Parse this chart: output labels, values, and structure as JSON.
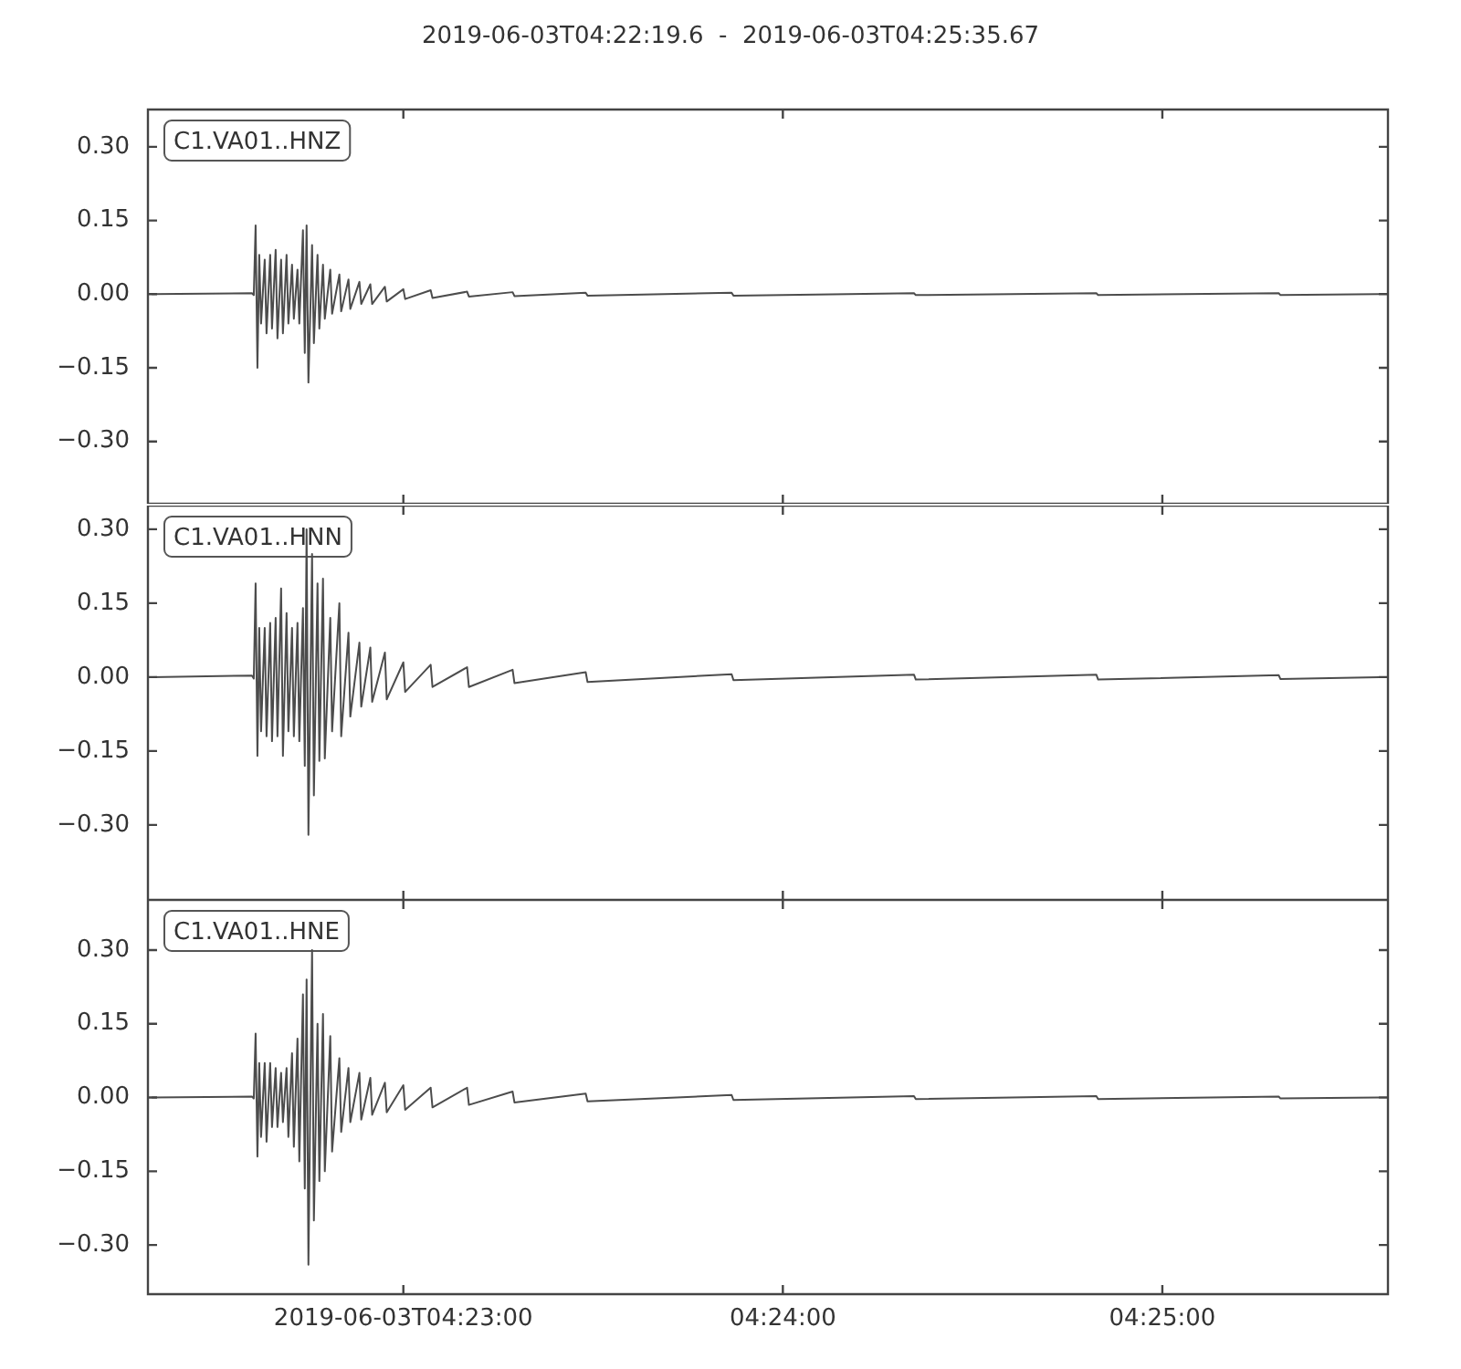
{
  "chart_data": [
    {
      "type": "line",
      "title": "2019-06-03T04:22:19.6  -  2019-06-03T04:25:35.67",
      "annotations": [
        "C1.VA01..HNZ"
      ],
      "x": [
        4.37228,
        4.37668,
        4.37676,
        4.37684,
        4.37692,
        4.377,
        4.37708,
        4.37724,
        4.37732,
        4.37748,
        4.37756,
        4.37772,
        4.3778,
        4.37796,
        4.37804,
        4.3782,
        4.37828,
        4.37844,
        4.37852,
        4.37868,
        4.37876,
        4.37892,
        4.379,
        4.37908,
        4.37916,
        4.37932,
        4.3794,
        4.37956,
        4.37964,
        4.3798,
        4.37988,
        4.38012,
        4.3802,
        4.38052,
        4.3806,
        4.38092,
        4.381,
        4.3814,
        4.38148,
        4.38188,
        4.38196,
        4.38252,
        4.3826,
        4.38333,
        4.38341,
        4.38453,
        4.38461,
        4.38613,
        4.38621,
        4.38813,
        4.38821,
        4.39134,
        4.39142,
        4.39775,
        4.39783,
        4.40576,
        4.40584,
        4.41377,
        4.41385,
        4.42178,
        4.42186,
        4.42618
      ],
      "series": [
        {
          "color": "#4c4c4c",
          "values": [
            0,
            0.002,
            -0.002,
            0.14,
            -0.15,
            0.08,
            -0.06,
            0.07,
            -0.08,
            0.08,
            -0.07,
            0.09,
            -0.09,
            0.07,
            -0.08,
            0.08,
            -0.06,
            0.06,
            -0.05,
            0.05,
            -0.06,
            0.13,
            -0.12,
            0.14,
            -0.18,
            0.1,
            -0.1,
            0.08,
            -0.07,
            0.06,
            -0.05,
            0.05,
            -0.04,
            0.04,
            -0.035,
            0.03,
            -0.03,
            0.025,
            -0.02,
            0.02,
            -0.02,
            0.015,
            -0.015,
            0.01,
            -0.01,
            0.008,
            -0.008,
            0.005,
            -0.005,
            0.004,
            -0.004,
            0.003,
            -0.003,
            0.003,
            -0.003,
            0.002,
            -0.002,
            0.002,
            -0.002,
            0.002,
            -0.002,
            0
          ]
        }
      ],
      "xlim": [
        4.37211,
        4.42658
      ],
      "ylim": [
        -0.427,
        0.376
      ],
      "xticks": [
        {
          "value": 4.38333,
          "label": null
        },
        {
          "value": 4.4,
          "label": null
        },
        {
          "value": 4.41667,
          "label": null
        }
      ],
      "yticks": [
        {
          "value": -0.3,
          "label": "−0.30"
        },
        {
          "value": -0.15,
          "label": "−0.15"
        },
        {
          "value": 0,
          "label": "0.00"
        },
        {
          "value": 0.15,
          "label": "0.15"
        },
        {
          "value": 0.3,
          "label": "0.30"
        }
      ],
      "tick_labels": "y"
    },
    {
      "type": "line",
      "annotations": [
        "C1.VA01..HNN"
      ],
      "x": [
        4.37228,
        4.37668,
        4.37676,
        4.37684,
        4.37692,
        4.377,
        4.37708,
        4.37724,
        4.37732,
        4.37748,
        4.37756,
        4.37772,
        4.3778,
        4.37796,
        4.37804,
        4.3782,
        4.37828,
        4.37844,
        4.37852,
        4.37868,
        4.37876,
        4.37892,
        4.379,
        4.37908,
        4.37916,
        4.37932,
        4.3794,
        4.37956,
        4.37964,
        4.3798,
        4.37988,
        4.38012,
        4.3802,
        4.38052,
        4.3806,
        4.38092,
        4.381,
        4.3814,
        4.38148,
        4.38188,
        4.38196,
        4.38252,
        4.3826,
        4.38333,
        4.38341,
        4.38453,
        4.38461,
        4.38613,
        4.38621,
        4.38813,
        4.38821,
        4.39134,
        4.39142,
        4.39775,
        4.39783,
        4.40576,
        4.40584,
        4.41377,
        4.41385,
        4.42178,
        4.42186,
        4.42618
      ],
      "series": [
        {
          "color": "#4c4c4c",
          "values": [
            0,
            0.003,
            -0.003,
            0.19,
            -0.16,
            0.1,
            -0.11,
            0.1,
            -0.12,
            0.11,
            -0.13,
            0.12,
            -0.12,
            0.18,
            -0.16,
            0.13,
            -0.11,
            0.1,
            -0.12,
            0.11,
            -0.13,
            0.14,
            -0.18,
            0.3,
            -0.32,
            0.25,
            -0.24,
            0.19,
            -0.17,
            0.2,
            -0.165,
            0.12,
            -0.11,
            0.15,
            -0.12,
            0.09,
            -0.08,
            0.07,
            -0.06,
            0.06,
            -0.05,
            0.05,
            -0.045,
            0.03,
            -0.03,
            0.025,
            -0.02,
            0.02,
            -0.02,
            0.015,
            -0.012,
            0.01,
            -0.01,
            0.006,
            -0.006,
            0.005,
            -0.005,
            0.005,
            -0.005,
            0.004,
            -0.004,
            0
          ]
        }
      ],
      "xlim": [
        4.37211,
        4.42658
      ],
      "ylim": [
        -0.452,
        0.348
      ],
      "xticks": [
        {
          "value": 4.38333,
          "label": null
        },
        {
          "value": 4.4,
          "label": null
        },
        {
          "value": 4.41667,
          "label": null
        }
      ],
      "yticks": [
        {
          "value": -0.3,
          "label": "−0.30"
        },
        {
          "value": -0.15,
          "label": "−0.15"
        },
        {
          "value": 0,
          "label": "0.00"
        },
        {
          "value": 0.15,
          "label": "0.15"
        },
        {
          "value": 0.3,
          "label": "0.30"
        }
      ],
      "tick_labels": "y"
    },
    {
      "type": "line",
      "annotations": [
        "C1.VA01..HNE"
      ],
      "x": [
        4.37228,
        4.37668,
        4.37676,
        4.37684,
        4.37692,
        4.377,
        4.37708,
        4.37724,
        4.37732,
        4.37748,
        4.37756,
        4.37772,
        4.3778,
        4.37796,
        4.37804,
        4.3782,
        4.37828,
        4.37844,
        4.37852,
        4.37868,
        4.37876,
        4.37892,
        4.379,
        4.37908,
        4.37916,
        4.37932,
        4.3794,
        4.37956,
        4.37964,
        4.3798,
        4.37988,
        4.38012,
        4.3802,
        4.38052,
        4.3806,
        4.38092,
        4.381,
        4.3814,
        4.38148,
        4.38188,
        4.38196,
        4.38252,
        4.3826,
        4.38333,
        4.38341,
        4.38453,
        4.38461,
        4.38613,
        4.38621,
        4.38813,
        4.38821,
        4.39134,
        4.39142,
        4.39775,
        4.39783,
        4.40576,
        4.40584,
        4.41377,
        4.41385,
        4.42178,
        4.42186,
        4.42618
      ],
      "series": [
        {
          "color": "#4c4c4c",
          "values": [
            0,
            0.002,
            -0.002,
            0.13,
            -0.12,
            0.07,
            -0.08,
            0.07,
            -0.09,
            0.07,
            -0.06,
            0.06,
            -0.06,
            0.05,
            -0.05,
            0.06,
            -0.08,
            0.09,
            -0.1,
            0.12,
            -0.13,
            0.21,
            -0.185,
            0.24,
            -0.34,
            0.3,
            -0.25,
            0.15,
            -0.17,
            0.17,
            -0.15,
            0.125,
            -0.11,
            0.08,
            -0.07,
            0.06,
            -0.05,
            0.05,
            -0.045,
            0.04,
            -0.035,
            0.03,
            -0.03,
            0.025,
            -0.025,
            0.02,
            -0.02,
            0.02,
            -0.015,
            0.012,
            -0.01,
            0.008,
            -0.008,
            0.005,
            -0.005,
            0.003,
            -0.003,
            0.003,
            -0.003,
            0.002,
            -0.002,
            0
          ]
        }
      ],
      "xlim": [
        4.37211,
        4.42658
      ],
      "ylim": [
        -0.4,
        0.402
      ],
      "xticks": [
        {
          "value": 4.38333,
          "label": "2019-06-03T04:23:00"
        },
        {
          "value": 4.4,
          "label": "04:24:00"
        },
        {
          "value": 4.41667,
          "label": "04:25:00"
        }
      ],
      "yticks": [
        {
          "value": -0.3,
          "label": "−0.30"
        },
        {
          "value": -0.15,
          "label": "−0.15"
        },
        {
          "value": 0,
          "label": "0.00"
        },
        {
          "value": 0.15,
          "label": "0.15"
        },
        {
          "value": 0.3,
          "label": "0.30"
        }
      ]
    }
  ]
}
